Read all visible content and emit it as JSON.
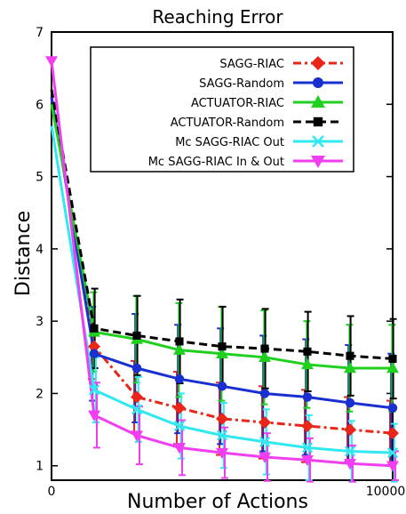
{
  "chart_data": {
    "type": "line",
    "title": "Reaching Error",
    "xlabel": "Number of Actions",
    "ylabel": "Distance",
    "xlim": [
      0,
      10000
    ],
    "ylim": [
      0.8,
      7
    ],
    "x_ticks": [
      "0",
      "10000"
    ],
    "y_ticks": [
      "1",
      "2",
      "3",
      "4",
      "5",
      "6",
      "7"
    ],
    "legend_position": "top-right",
    "x": [
      0,
      1250,
      2500,
      3750,
      5000,
      6250,
      7500,
      8750,
      10000
    ],
    "series": [
      {
        "name": "SAGG-RIAC",
        "color": "#e8261a",
        "dash": "dashdot",
        "marker": "diamond",
        "values": [
          6.1,
          2.65,
          1.95,
          1.8,
          1.65,
          1.6,
          1.55,
          1.5,
          1.45
        ],
        "err": [
          0,
          0.45,
          0.5,
          0.5,
          0.5,
          0.5,
          0.5,
          0.45,
          0.45
        ]
      },
      {
        "name": "SAGG-Random",
        "color": "#1a2fcf",
        "dash": "solid",
        "marker": "circle",
        "values": [
          6.1,
          2.55,
          2.35,
          2.2,
          2.1,
          2.0,
          1.95,
          1.87,
          1.8
        ],
        "err": [
          0,
          0.65,
          0.75,
          0.75,
          0.8,
          0.8,
          0.8,
          0.8,
          0.75
        ]
      },
      {
        "name": "ACTUATOR-RIAC",
        "color": "#1fd01f",
        "dash": "solid",
        "marker": "triangle-up",
        "values": [
          6.0,
          2.85,
          2.75,
          2.6,
          2.55,
          2.5,
          2.4,
          2.35,
          2.35
        ],
        "err": [
          0,
          0.55,
          0.6,
          0.65,
          0.65,
          0.65,
          0.6,
          0.6,
          0.6
        ]
      },
      {
        "name": "ACTUATOR-Random",
        "color": "#000000",
        "dash": "dashed",
        "marker": "square",
        "values": [
          6.2,
          2.9,
          2.8,
          2.72,
          2.65,
          2.62,
          2.58,
          2.52,
          2.48
        ],
        "err": [
          0,
          0.55,
          0.55,
          0.58,
          0.55,
          0.55,
          0.55,
          0.55,
          0.55
        ]
      },
      {
        "name": "Mc SAGG-RIAC Out",
        "color": "#2fe8f0",
        "dash": "solid",
        "marker": "x",
        "values": [
          5.7,
          2.05,
          1.78,
          1.55,
          1.42,
          1.33,
          1.25,
          1.2,
          1.18
        ],
        "err": [
          0,
          0.45,
          0.45,
          0.45,
          0.45,
          0.45,
          0.45,
          0.42,
          0.4
        ]
      },
      {
        "name": "Mc SAGG-RIAC In & Out",
        "color": "#f03ef0",
        "dash": "solid",
        "marker": "triangle-down",
        "values": [
          6.6,
          1.7,
          1.42,
          1.25,
          1.18,
          1.12,
          1.08,
          1.03,
          1.0
        ],
        "err": [
          0,
          0.45,
          0.4,
          0.38,
          0.35,
          0.33,
          0.3,
          0.25,
          0.2
        ]
      }
    ]
  }
}
